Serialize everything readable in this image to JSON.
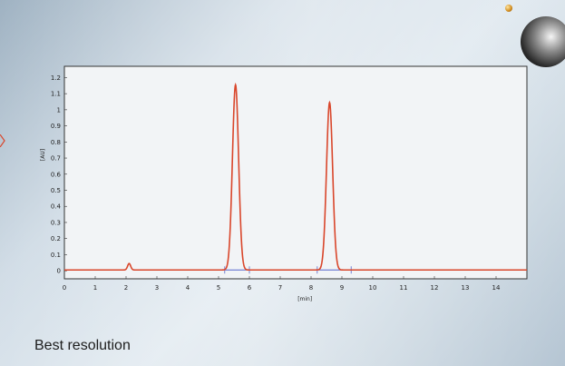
{
  "caption": "Best resolution",
  "colors": {
    "trace": "#d9462b",
    "baseline": "#5566cc",
    "frame": "#333333",
    "plot_bg": "#f2f4f6"
  },
  "chart_data": {
    "type": "line",
    "xlabel": "[min]",
    "ylabel": "[AU]",
    "xlim": [
      0,
      15
    ],
    "ylim": [
      -0.05,
      1.27
    ],
    "x_ticks": [
      0,
      1,
      2,
      3,
      4,
      5,
      6,
      7,
      8,
      9,
      10,
      11,
      12,
      13,
      14
    ],
    "y_ticks": [
      0,
      0.1,
      0.2,
      0.3,
      0.4,
      0.5,
      0.6,
      0.7,
      0.8,
      0.9,
      1,
      1.1,
      1.2
    ],
    "y_tick_labels": [
      "0",
      "0.1",
      "0.2",
      "0.3",
      "0.4",
      "0.5",
      "0.6",
      "0.7",
      "0.8",
      "0.9",
      "1",
      "1.1",
      "1.2"
    ],
    "grid": false,
    "series": [
      {
        "color": "#d9462b",
        "peaks": [
          {
            "x": 2.1,
            "height": 0.04,
            "width": 0.05
          },
          {
            "x": 5.55,
            "height": 1.15,
            "width": 0.1
          },
          {
            "x": 8.6,
            "height": 1.04,
            "width": 0.1
          }
        ],
        "baseline": 0.005
      }
    ],
    "integration_baselines": [
      {
        "x_start": 5.2,
        "x_end": 6.0,
        "color": "#5566cc"
      },
      {
        "x_start": 8.2,
        "x_end": 9.3,
        "color": "#5566cc"
      }
    ]
  }
}
